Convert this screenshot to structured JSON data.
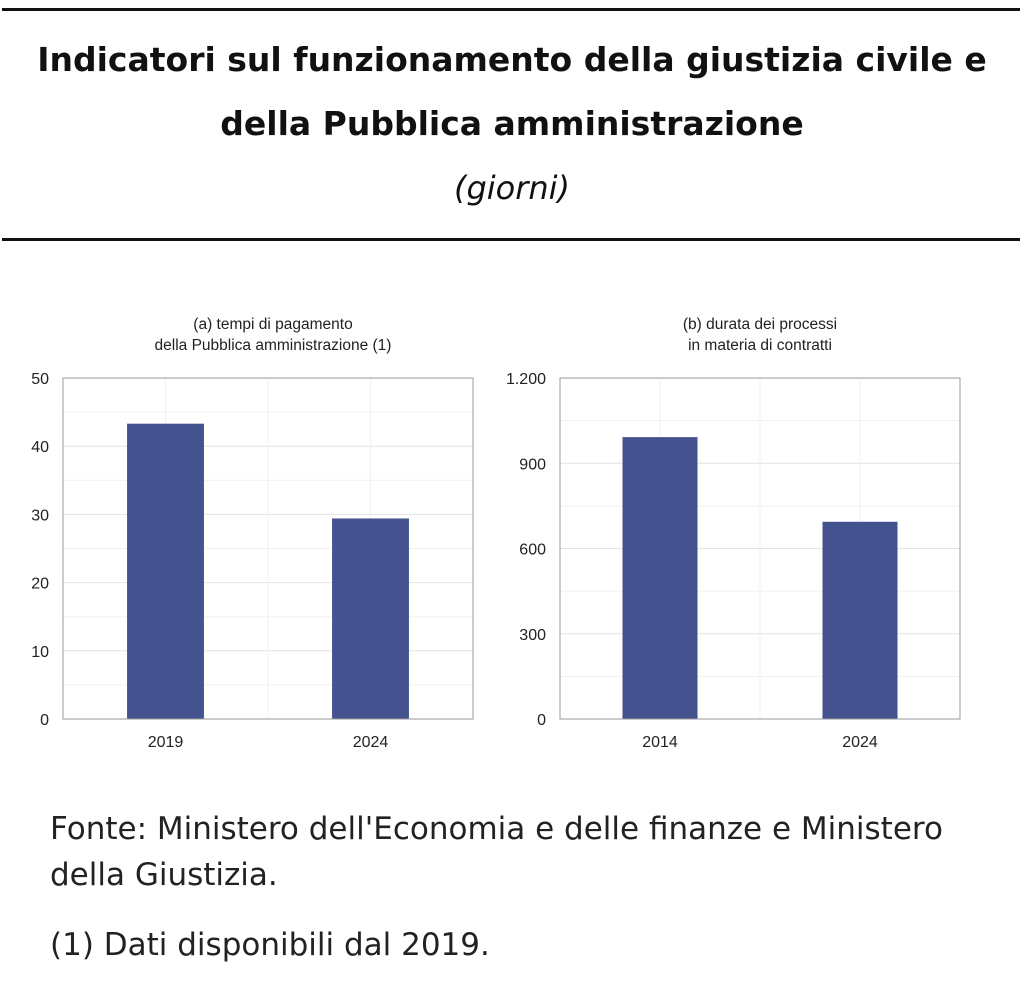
{
  "header": {
    "title_line1": "Indicatori sul funzionamento della giustizia civile e",
    "title_line2": "della Pubblica amministrazione",
    "subtitle": "(giorni)"
  },
  "chart_data": [
    {
      "type": "bar",
      "title": [
        "(a) tempi di pagamento",
        "della Pubblica amministrazione (1)"
      ],
      "categories": [
        "2019",
        "2024"
      ],
      "values": [
        43.3,
        29.4
      ],
      "ylim": [
        0,
        50
      ],
      "yticks": [
        0,
        10,
        20,
        30,
        40,
        50
      ],
      "ytick_labels": [
        "0",
        "10",
        "20",
        "30",
        "40",
        "50"
      ],
      "grid": true,
      "bar_color": "#44528f"
    },
    {
      "type": "bar",
      "title": [
        "(b) durata dei processi",
        "in materia di contratti"
      ],
      "categories": [
        "2014",
        "2024"
      ],
      "values": [
        992,
        694
      ],
      "ylim": [
        0,
        1200
      ],
      "yticks": [
        0,
        300,
        600,
        900,
        1200
      ],
      "ytick_labels": [
        "0",
        "300",
        "600",
        "900",
        "1.200"
      ],
      "grid": true,
      "bar_color": "#44528f"
    }
  ],
  "notes": {
    "source": "Fonte: Ministero dell'Economia e delle finanze e Ministero della Giustizia.",
    "footnote": "(1) Dati disponibili dal 2019."
  }
}
